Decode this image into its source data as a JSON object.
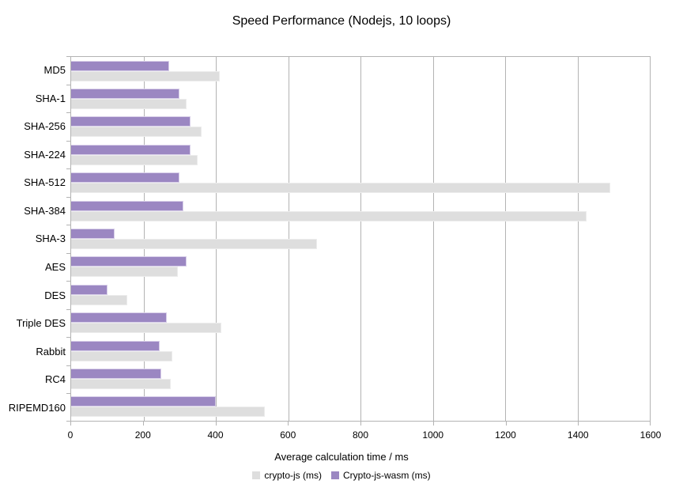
{
  "chart_data": {
    "type": "bar",
    "orientation": "horizontal",
    "title": "Speed Performance (Nodejs, 10 loops)",
    "xlabel": "Average calculation time / ms",
    "ylabel": "",
    "xlim": [
      0,
      1600
    ],
    "xticks": [
      0,
      200,
      400,
      600,
      800,
      1000,
      1200,
      1400,
      1600
    ],
    "grid": true,
    "legend_position": "bottom",
    "categories": [
      "MD5",
      "SHA-1",
      "SHA-256",
      "SHA-224",
      "SHA-512",
      "SHA-384",
      "SHA-3",
      "AES",
      "DES",
      "Triple DES",
      "Rabbit",
      "RC4",
      "RIPEMD160"
    ],
    "series": [
      {
        "name": "crypto-js (ms)",
        "color": "#dedede",
        "values": [
          410,
          320,
          360,
          350,
          1490,
          1425,
          680,
          295,
          155,
          415,
          280,
          275,
          535
        ]
      },
      {
        "name": "Crypto-js-wasm (ms)",
        "color": "#9b87c2",
        "values": [
          270,
          300,
          330,
          330,
          300,
          310,
          120,
          320,
          100,
          265,
          245,
          250,
          400
        ]
      }
    ]
  },
  "style": {
    "grid_color": "#b3b3b3",
    "background": "#ffffff"
  }
}
